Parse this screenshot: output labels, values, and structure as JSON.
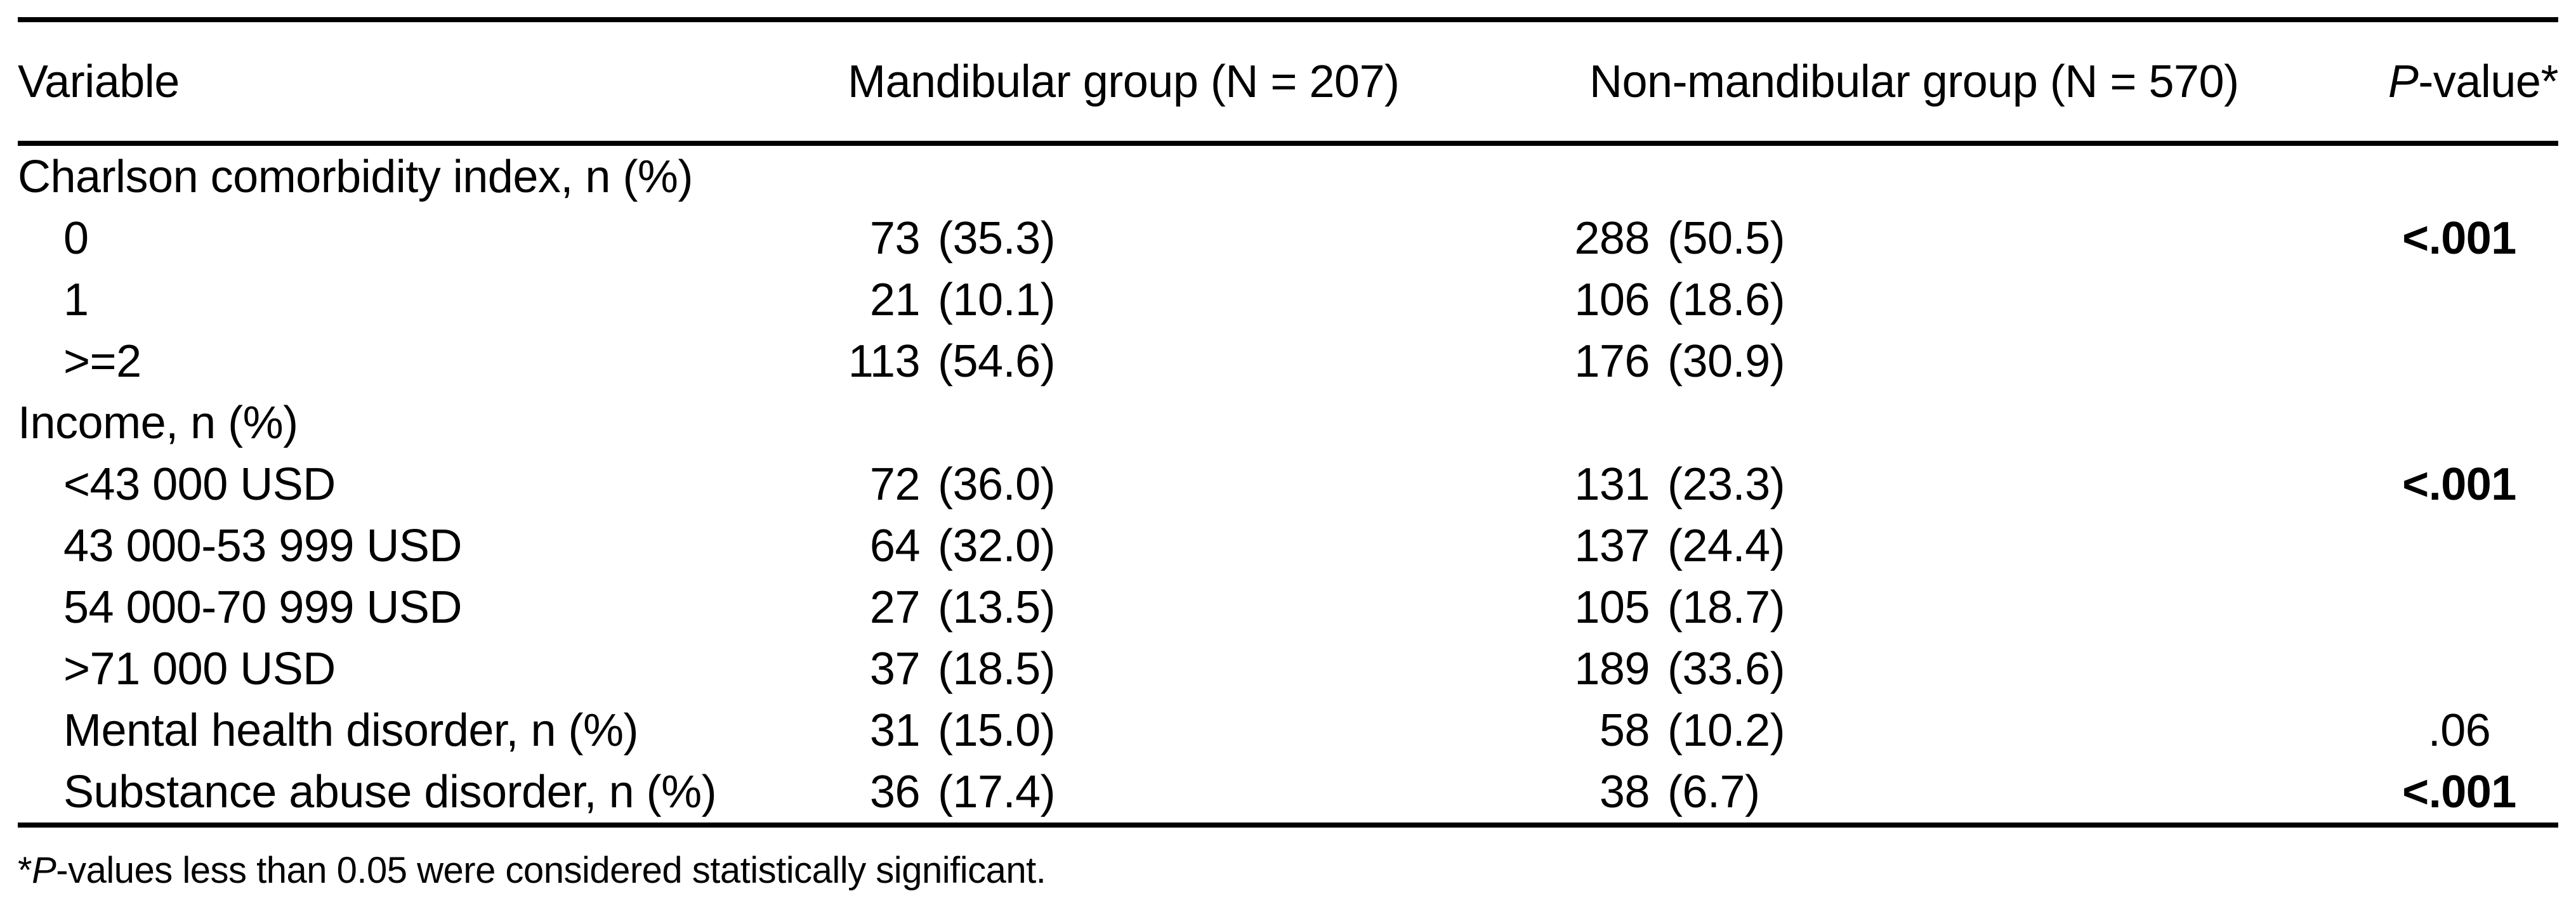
{
  "table": {
    "header": {
      "variable": "Variable",
      "group1": "Mandibular group (N = 207)",
      "group2": "Non-mandibular group (N = 570)",
      "pvalue_p": "P",
      "pvalue_rest": "-value*"
    },
    "rows": [
      {
        "label": "Charlson comorbidity index, n (%)",
        "g1c": "",
        "g1p": "",
        "g2c": "",
        "g2p": "",
        "p": ""
      },
      {
        "label": "0",
        "g1c": "73",
        "g1p": "(35.3)",
        "g2c": "288",
        "g2p": "(50.5)",
        "p": "<.001"
      },
      {
        "label": "1",
        "g1c": "21",
        "g1p": "(10.1)",
        "g2c": "106",
        "g2p": "(18.6)",
        "p": ""
      },
      {
        "label": ">=2",
        "g1c": "113",
        "g1p": "(54.6)",
        "g2c": "176",
        "g2p": "(30.9)",
        "p": ""
      },
      {
        "label": "Income, n (%)",
        "g1c": "",
        "g1p": "",
        "g2c": "",
        "g2p": "",
        "p": ""
      },
      {
        "label": "<43 000 USD",
        "g1c": "72",
        "g1p": "(36.0)",
        "g2c": "131",
        "g2p": "(23.3)",
        "p": "<.001"
      },
      {
        "label": "43 000-53 999 USD",
        "g1c": "64",
        "g1p": "(32.0)",
        "g2c": "137",
        "g2p": "(24.4)",
        "p": ""
      },
      {
        "label": "54 000-70 999 USD",
        "g1c": "27",
        "g1p": "(13.5)",
        "g2c": "105",
        "g2p": "(18.7)",
        "p": ""
      },
      {
        "label": ">71 000 USD",
        "g1c": "37",
        "g1p": "(18.5)",
        "g2c": "189",
        "g2p": "(33.6)",
        "p": ""
      },
      {
        "label": "Mental health disorder, n (%)",
        "g1c": "31",
        "g1p": "(15.0)",
        "g2c": "58",
        "g2p": "(10.2)",
        "p": ".06"
      },
      {
        "label": "Substance abuse disorder, n (%)",
        "g1c": "36",
        "g1p": "(17.4)",
        "g2c": "38",
        "g2p": "(6.7)",
        "p": "<.001"
      }
    ],
    "footnote": {
      "star": "*",
      "p": "P",
      "rest": "-values less than 0.05 were considered statistically significant."
    }
  }
}
